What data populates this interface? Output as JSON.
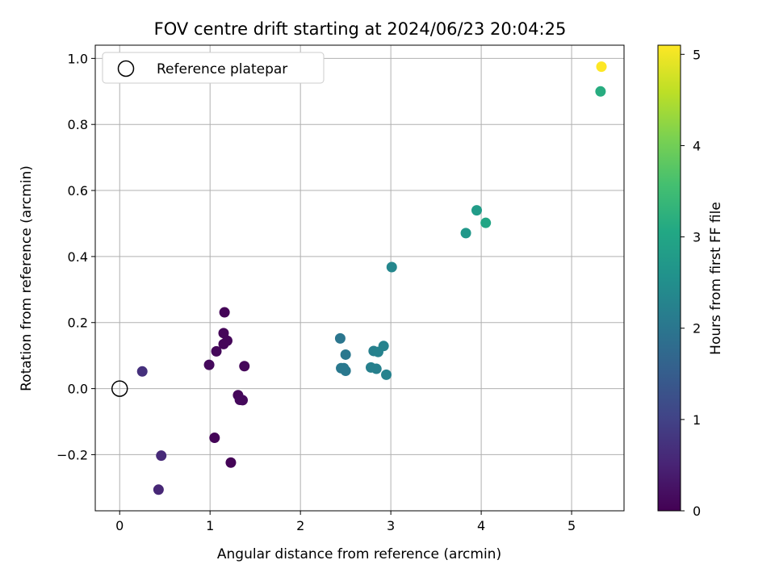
{
  "chart_data": {
    "type": "scatter",
    "title": "FOV centre drift starting at 2024/06/23 20:04:25",
    "xlabel": "Angular distance from reference (arcmin)",
    "ylabel": "Rotation from reference (arcmin)",
    "xlim": [
      -0.27,
      5.58
    ],
    "ylim": [
      -0.37,
      1.04
    ],
    "xticks": [
      0,
      1,
      2,
      3,
      4,
      5
    ],
    "xtick_labels": [
      "0",
      "1",
      "2",
      "3",
      "4",
      "5"
    ],
    "yticks": [
      -0.2,
      0.0,
      0.2,
      0.4,
      0.6,
      0.8,
      1.0
    ],
    "ytick_labels": [
      "−0.2",
      "0.0",
      "0.2",
      "0.4",
      "0.6",
      "0.8",
      "1.0"
    ],
    "grid": true,
    "legend": {
      "placement": "top-left",
      "entries": [
        {
          "label": "Reference platepar",
          "marker": "open-circle"
        }
      ]
    },
    "reference_point": {
      "x": 0,
      "y": 0
    },
    "colorbar": {
      "label": "Hours from first FF file",
      "colormap": "viridis",
      "range": [
        0,
        5.1
      ],
      "ticks": [
        0,
        1,
        2,
        3,
        4,
        5
      ],
      "tick_labels": [
        "0",
        "1",
        "2",
        "3",
        "4",
        "5"
      ]
    },
    "points": [
      {
        "x": 0.25,
        "y": 0.052,
        "hours": 0.7
      },
      {
        "x": 0.46,
        "y": -0.203,
        "hours": 0.6
      },
      {
        "x": 0.43,
        "y": -0.306,
        "hours": 0.55
      },
      {
        "x": 0.99,
        "y": 0.072,
        "hours": 0.12
      },
      {
        "x": 1.07,
        "y": 0.113,
        "hours": 0.1
      },
      {
        "x": 1.15,
        "y": 0.168,
        "hours": 0.08
      },
      {
        "x": 1.15,
        "y": 0.135,
        "hours": 0.08
      },
      {
        "x": 1.19,
        "y": 0.145,
        "hours": 0.08
      },
      {
        "x": 1.16,
        "y": 0.231,
        "hours": 0.05
      },
      {
        "x": 1.38,
        "y": 0.068,
        "hours": 0.1
      },
      {
        "x": 1.31,
        "y": -0.02,
        "hours": 0.1
      },
      {
        "x": 1.33,
        "y": -0.034,
        "hours": 0.12
      },
      {
        "x": 1.36,
        "y": -0.035,
        "hours": 0.12
      },
      {
        "x": 1.05,
        "y": -0.149,
        "hours": 0.05
      },
      {
        "x": 1.23,
        "y": -0.224,
        "hours": 0.05
      },
      {
        "x": 2.44,
        "y": 0.152,
        "hours": 2.0
      },
      {
        "x": 2.45,
        "y": 0.062,
        "hours": 2.05
      },
      {
        "x": 2.48,
        "y": 0.062,
        "hours": 2.05
      },
      {
        "x": 2.5,
        "y": 0.103,
        "hours": 2.05
      },
      {
        "x": 2.5,
        "y": 0.054,
        "hours": 2.05
      },
      {
        "x": 2.78,
        "y": 0.064,
        "hours": 2.2
      },
      {
        "x": 2.81,
        "y": 0.114,
        "hours": 2.2
      },
      {
        "x": 2.84,
        "y": 0.06,
        "hours": 2.2
      },
      {
        "x": 2.86,
        "y": 0.111,
        "hours": 2.25
      },
      {
        "x": 2.92,
        "y": 0.129,
        "hours": 2.25
      },
      {
        "x": 2.95,
        "y": 0.042,
        "hours": 2.25
      },
      {
        "x": 3.01,
        "y": 0.368,
        "hours": 2.35
      },
      {
        "x": 3.83,
        "y": 0.471,
        "hours": 2.7
      },
      {
        "x": 3.95,
        "y": 0.54,
        "hours": 2.8
      },
      {
        "x": 4.05,
        "y": 0.502,
        "hours": 3.0
      },
      {
        "x": 5.32,
        "y": 0.9,
        "hours": 3.15
      },
      {
        "x": 5.33,
        "y": 0.975,
        "hours": 5.1
      }
    ]
  }
}
